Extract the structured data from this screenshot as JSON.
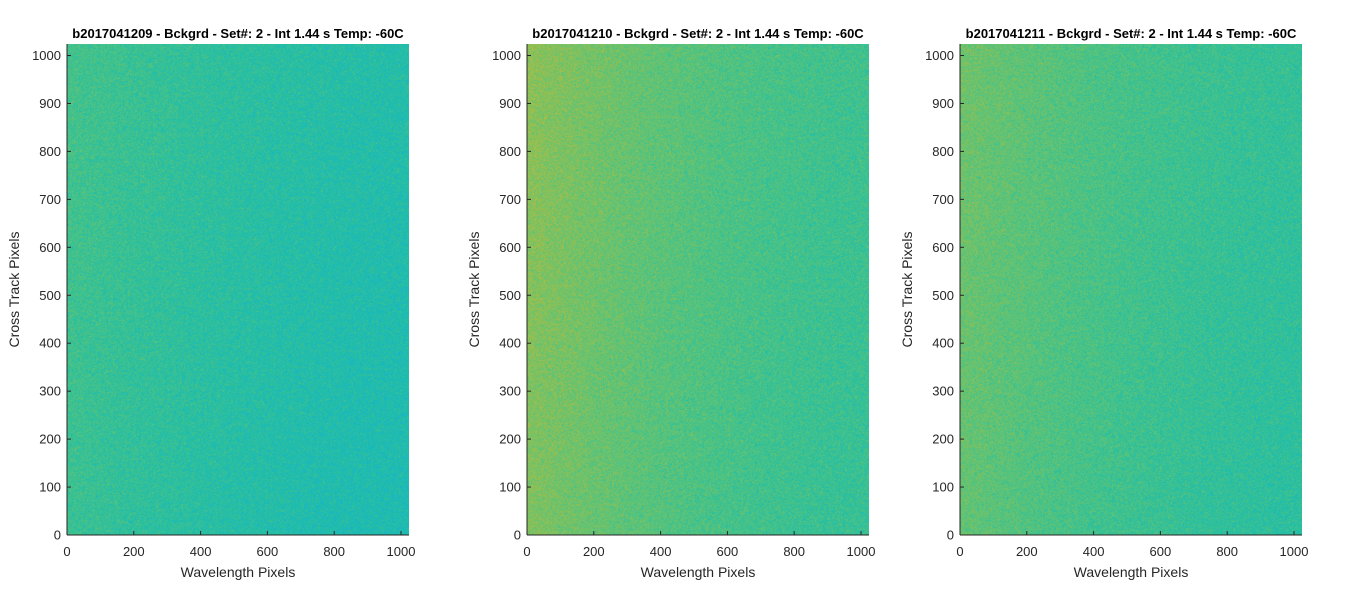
{
  "chart_data": [
    {
      "type": "heatmap",
      "title": "b2017041209 - Bckgrd - Set#: 2 - Int 1.44 s Temp: -60C",
      "xlabel": "Wavelength Pixels",
      "ylabel": "Cross Track Pixels",
      "xlim": [
        0,
        1024
      ],
      "ylim": [
        0,
        1024
      ],
      "xticks": [
        0,
        200,
        400,
        600,
        800,
        1000
      ],
      "yticks": [
        0,
        100,
        200,
        300,
        400,
        500,
        600,
        700,
        800,
        900,
        1000
      ],
      "colormap": "parula",
      "pattern": {
        "base": 0.52,
        "left_boost": 0.07,
        "top_boost": 0.02,
        "noise": 0.07
      }
    },
    {
      "type": "heatmap",
      "title": "b2017041210 - Bckgrd - Set#: 2 - Int 1.44 s Temp: -60C",
      "xlabel": "Wavelength Pixels",
      "ylabel": "Cross Track Pixels",
      "xlim": [
        0,
        1024
      ],
      "ylim": [
        0,
        1024
      ],
      "xticks": [
        0,
        200,
        400,
        600,
        800,
        1000
      ],
      "yticks": [
        0,
        100,
        200,
        300,
        400,
        500,
        600,
        700,
        800,
        900,
        1000
      ],
      "colormap": "parula",
      "pattern": {
        "base": 0.58,
        "left_boost": 0.12,
        "top_boost": 0.02,
        "noise": 0.07
      }
    },
    {
      "type": "heatmap",
      "title": "b2017041211 - Bckgrd - Set#: 2 - Int 1.44 s Temp: -60C",
      "xlabel": "Wavelength Pixels",
      "ylabel": "Cross Track Pixels",
      "xlim": [
        0,
        1024
      ],
      "ylim": [
        0,
        1024
      ],
      "xticks": [
        0,
        200,
        400,
        600,
        800,
        1000
      ],
      "yticks": [
        0,
        100,
        200,
        300,
        400,
        500,
        600,
        700,
        800,
        900,
        1000
      ],
      "colormap": "parula",
      "pattern": {
        "base": 0.56,
        "left_boost": 0.1,
        "top_boost": 0.02,
        "noise": 0.07
      }
    }
  ]
}
